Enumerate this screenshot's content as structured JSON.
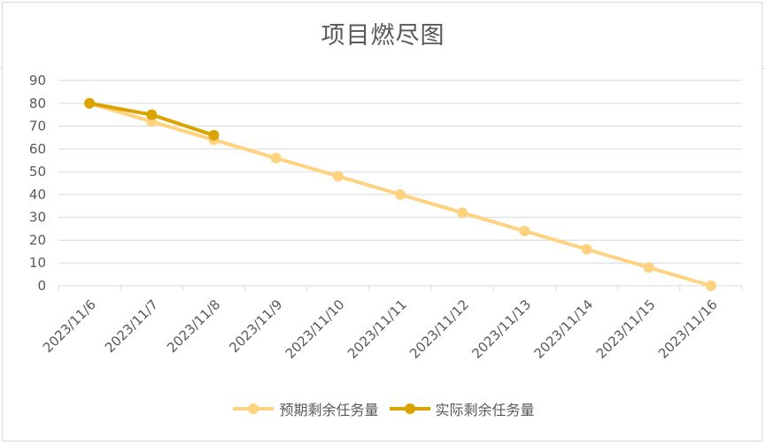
{
  "chart_data": {
    "type": "line",
    "title": "项目燃尽图",
    "categories": [
      "2023/11/6",
      "2023/11/7",
      "2023/11/8",
      "2023/11/9",
      "2023/11/10",
      "2023/11/11",
      "2023/11/12",
      "2023/11/13",
      "2023/11/14",
      "2023/11/15",
      "2023/11/16"
    ],
    "series": [
      {
        "name": "预期剩余任务量",
        "color": "#FFD27F",
        "values": [
          80,
          72,
          64,
          56,
          48,
          40,
          32,
          24,
          16,
          8,
          0
        ]
      },
      {
        "name": "实际剩余任务量",
        "color": "#DAA300",
        "values": [
          80,
          75,
          66,
          null,
          null,
          null,
          null,
          null,
          null,
          null,
          null
        ]
      }
    ],
    "ylim": [
      0,
      90
    ],
    "yticks": [
      0,
      10,
      20,
      30,
      40,
      50,
      60,
      70,
      80,
      90
    ],
    "grid": true,
    "legend_position": "bottom"
  }
}
